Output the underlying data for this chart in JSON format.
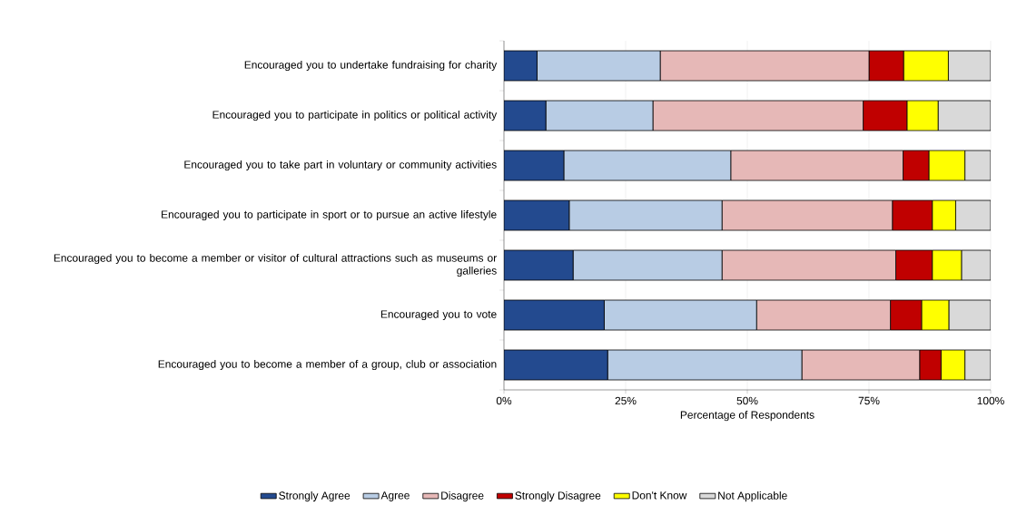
{
  "chart_data": {
    "type": "bar",
    "orientation": "horizontal",
    "stacked": true,
    "categories": [
      "Encouraged you to undertake fundraising for charity",
      "Encouraged you to participate in politics or political activity",
      "Encouraged you to take part in voluntary or community activities",
      "Encouraged you to participate in sport or to pursue an active lifestyle",
      "Encouraged you to become a member or visitor of cultural attractions such as museums or galleries",
      "Encouraged you to vote",
      "Encouraged you to become a member of a group, club or association"
    ],
    "series": [
      {
        "name": "Strongly Agree",
        "color": "#234a8f",
        "values": [
          6.8,
          8.6,
          12.3,
          13.4,
          14.2,
          20.6,
          21.3
        ]
      },
      {
        "name": "Agree",
        "color": "#b8cce4",
        "values": [
          25.3,
          22.0,
          34.3,
          31.4,
          30.6,
          31.3,
          39.9
        ]
      },
      {
        "name": "Disagree",
        "color": "#e6b8b7",
        "values": [
          42.9,
          43.2,
          35.4,
          35.0,
          35.7,
          27.5,
          24.2
        ]
      },
      {
        "name": "Strongly Disagree",
        "color": "#c00000",
        "values": [
          7.1,
          9.0,
          5.3,
          8.2,
          7.5,
          6.4,
          4.4
        ]
      },
      {
        "name": "Don't Know",
        "color": "#ffff00",
        "values": [
          9.2,
          6.4,
          7.4,
          4.8,
          6.0,
          5.6,
          4.9
        ]
      },
      {
        "name": "Not Applicable",
        "color": "#d9d9d9",
        "values": [
          8.7,
          10.8,
          5.3,
          7.2,
          6.0,
          8.6,
          5.3
        ]
      }
    ],
    "xlim": [
      0,
      100
    ],
    "xticks": [
      {
        "value": 0,
        "label": "0%"
      },
      {
        "value": 25,
        "label": "25%"
      },
      {
        "value": 50,
        "label": "50%"
      },
      {
        "value": 75,
        "label": "75%"
      },
      {
        "value": 100,
        "label": "100%"
      }
    ],
    "xlabel": "Percentage of Respondents",
    "grid": "x",
    "legend": "bottom"
  }
}
